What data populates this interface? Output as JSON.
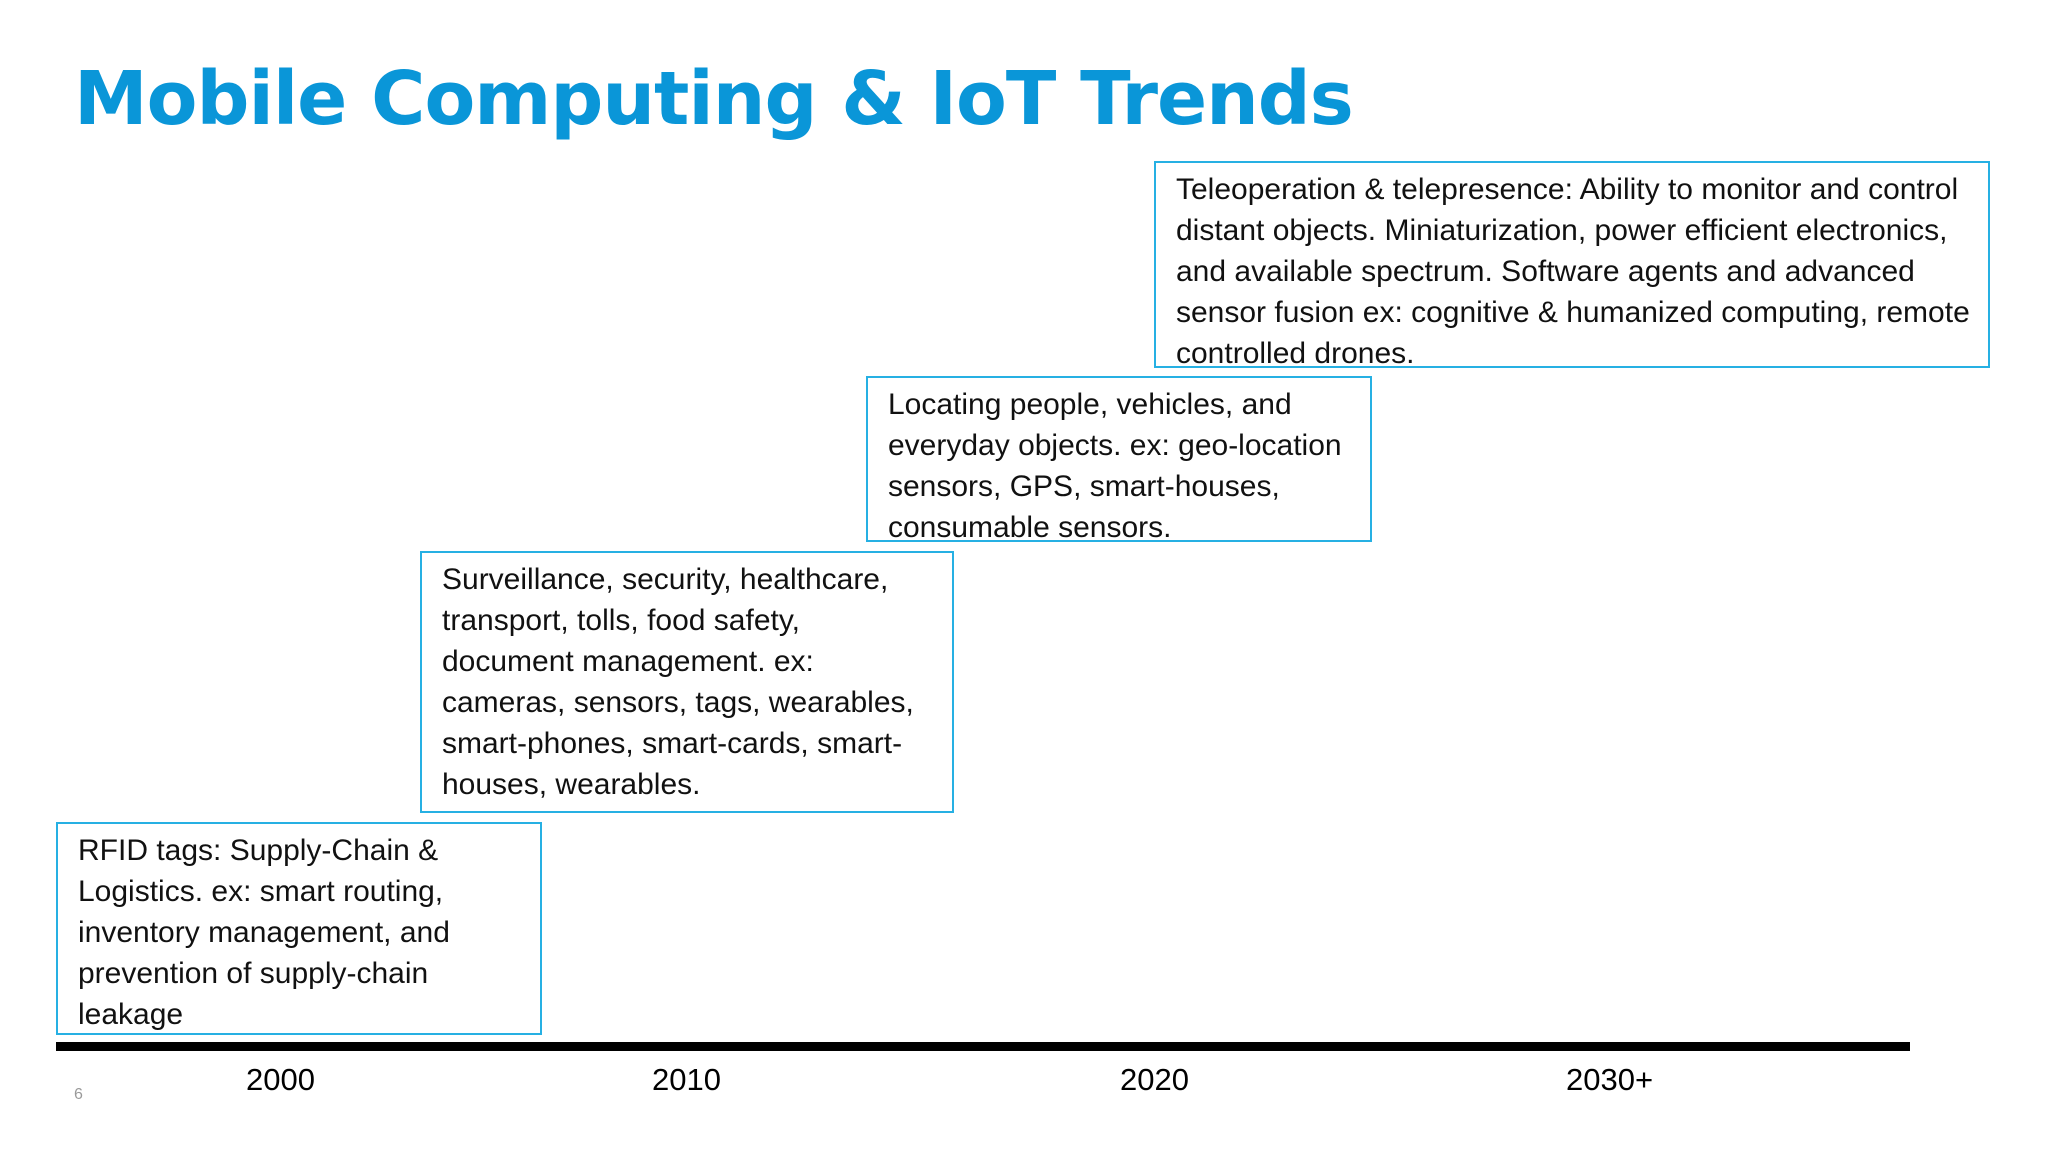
{
  "title": "Mobile Computing & IoT Trends",
  "stages": [
    {
      "text": "RFID tags: Supply-Chain & Logistics. ex: smart routing, inventory management, and prevention of supply-chain leakage"
    },
    {
      "text": "Surveillance, security, healthcare, transport, tolls, food safety, document management. ex: cameras, sensors, tags, wearables, smart-phones, smart-cards, smart-houses, wearables."
    },
    {
      "text": "Locating people, vehicles, and everyday objects. ex: geo-location sensors, GPS, smart-houses, consumable sensors."
    },
    {
      "text": "Teleoperation & telepresence: Ability to monitor and control distant objects. Miniaturization, power efficient electronics, and available spectrum. Software agents and advanced sensor fusion ex: cognitive & humanized computing, remote controlled drones."
    }
  ],
  "timeline": {
    "years": [
      "2000",
      "2010",
      "2020",
      "2030+"
    ]
  },
  "page_number": "6",
  "colors": {
    "title": "#0a96d8",
    "box_border": "#26b0e3",
    "timeline": "#000000"
  }
}
